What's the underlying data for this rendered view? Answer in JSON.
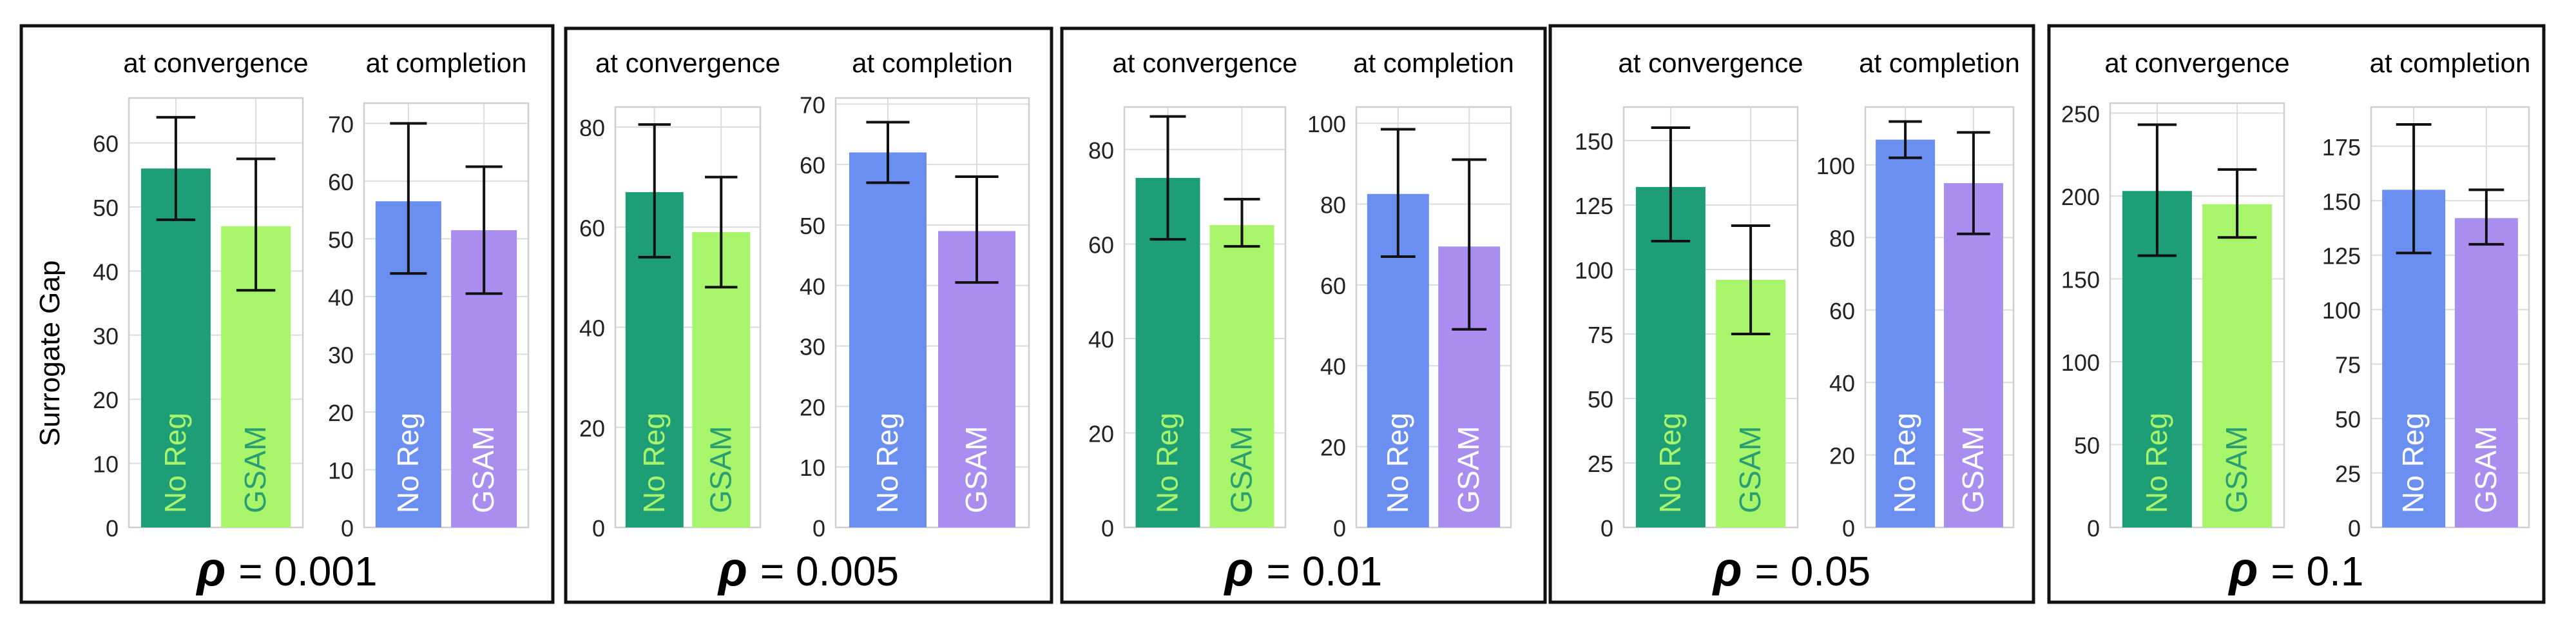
{
  "figure": {
    "ylabel": "Surrogate Gap",
    "rho_symbol": "ρ",
    "bar_labels": [
      "No Reg",
      "GSAM"
    ]
  },
  "colors": {
    "conv_noreg": "#1e9e77",
    "conv_gsam": "#a8f56c",
    "comp_noreg": "#6b8ff0",
    "comp_gsam": "#a98ef0",
    "conv_noreg_label": "#a8f56c",
    "conv_gsam_label": "#2a9e6e",
    "comp_label": "#ffffff",
    "grid": "#dcdcdc",
    "error_bar": "#111111",
    "frame": "#111111"
  },
  "chart_data": [
    {
      "type": "bar",
      "rho": "= 0.001",
      "panels": [
        {
          "title": "at convergence",
          "categories": [
            "No Reg",
            "GSAM"
          ],
          "values": [
            56,
            47
          ],
          "err_low": [
            48,
            37
          ],
          "err_high": [
            64,
            57.5
          ],
          "ylim": [
            0,
            67
          ],
          "yticks": [
            0,
            10,
            20,
            30,
            40,
            50,
            60
          ]
        },
        {
          "title": "at completion",
          "categories": [
            "No Reg",
            "GSAM"
          ],
          "values": [
            56.5,
            51.5
          ],
          "err_low": [
            44,
            40.5
          ],
          "err_high": [
            70,
            62.5
          ],
          "ylim": [
            0,
            73.5
          ],
          "yticks": [
            0,
            10,
            20,
            30,
            40,
            50,
            60,
            70
          ]
        }
      ]
    },
    {
      "type": "bar",
      "rho": "= 0.005",
      "panels": [
        {
          "title": "at convergence",
          "categories": [
            "No Reg",
            "GSAM"
          ],
          "values": [
            67,
            59
          ],
          "err_low": [
            54,
            48
          ],
          "err_high": [
            80.5,
            70
          ],
          "ylim": [
            0,
            84
          ],
          "yticks": [
            0,
            20,
            40,
            60,
            80
          ]
        },
        {
          "title": "at completion",
          "categories": [
            "No Reg",
            "GSAM"
          ],
          "values": [
            62,
            49
          ],
          "err_low": [
            57,
            40.5
          ],
          "err_high": [
            67,
            58
          ],
          "ylim": [
            0,
            71
          ],
          "yticks": [
            0,
            10,
            20,
            30,
            40,
            50,
            60,
            70
          ]
        }
      ]
    },
    {
      "type": "bar",
      "rho": "= 0.01",
      "panels": [
        {
          "title": "at convergence",
          "categories": [
            "No Reg",
            "GSAM"
          ],
          "values": [
            74,
            64
          ],
          "err_low": [
            61,
            59.5
          ],
          "err_high": [
            87,
            69.5
          ],
          "ylim": [
            0,
            89
          ],
          "yticks": [
            0,
            20,
            40,
            60,
            80
          ]
        },
        {
          "title": "at completion",
          "categories": [
            "No Reg",
            "GSAM"
          ],
          "values": [
            82.5,
            69.5
          ],
          "err_low": [
            67,
            49
          ],
          "err_high": [
            98.5,
            91
          ],
          "ylim": [
            0,
            104
          ],
          "yticks": [
            0,
            20,
            40,
            60,
            80,
            100
          ]
        }
      ]
    },
    {
      "type": "bar",
      "rho": "= 0.05",
      "panels": [
        {
          "title": "at convergence",
          "categories": [
            "No Reg",
            "GSAM"
          ],
          "values": [
            132,
            96
          ],
          "err_low": [
            111,
            75
          ],
          "err_high": [
            155,
            117
          ],
          "ylim": [
            0,
            163
          ],
          "yticks": [
            0,
            25,
            50,
            75,
            100,
            125,
            150
          ]
        },
        {
          "title": "at completion",
          "categories": [
            "No Reg",
            "GSAM"
          ],
          "values": [
            107,
            95
          ],
          "err_low": [
            102,
            81
          ],
          "err_high": [
            112,
            109
          ],
          "ylim": [
            0,
            116
          ],
          "yticks": [
            0,
            20,
            40,
            60,
            80,
            100
          ]
        }
      ]
    },
    {
      "type": "bar",
      "rho": "= 0.1",
      "panels": [
        {
          "title": "at convergence",
          "categories": [
            "No Reg",
            "GSAM"
          ],
          "values": [
            203,
            195
          ],
          "err_low": [
            164,
            175
          ],
          "err_high": [
            243,
            216
          ],
          "ylim": [
            0,
            256
          ],
          "yticks": [
            0,
            50,
            100,
            150,
            200,
            250
          ]
        },
        {
          "title": "at completion",
          "categories": [
            "No Reg",
            "GSAM"
          ],
          "values": [
            155,
            142
          ],
          "err_low": [
            126,
            130
          ],
          "err_high": [
            185,
            155
          ],
          "ylim": [
            0,
            193
          ],
          "yticks": [
            0,
            25,
            50,
            75,
            100,
            125,
            150,
            175
          ]
        }
      ]
    }
  ]
}
